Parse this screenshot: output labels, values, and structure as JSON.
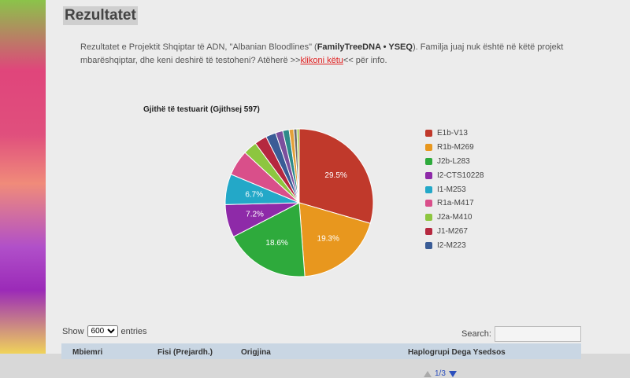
{
  "title": "Rezultatet",
  "intro": {
    "text1": "Rezultatet e Projektit Shqiptar të ADN, \"Albanian Bloodlines\" (",
    "bold": "FamilyTreeDNA • YSEQ",
    "text2": ").  Familja juaj nuk është në këtë projekt mbarëshqiptar, dhe keni deshirë të testoheni? Atëherë >>",
    "link": "klikoni këtu",
    "text3": "<< për info."
  },
  "chart_data": {
    "type": "pie",
    "title": "Gjithë të testuarit (Gjithsej 597)",
    "slices": [
      {
        "label": "E1b-V13",
        "value": 29.5,
        "color": "#c0392b"
      },
      {
        "label": "R1b-M269",
        "value": 19.3,
        "color": "#e8971e"
      },
      {
        "label": "J2b-L283",
        "value": 18.6,
        "color": "#2eaa3c"
      },
      {
        "label": "I2-CTS10228",
        "value": 7.2,
        "color": "#8e2aa8"
      },
      {
        "label": "I1-M253",
        "value": 6.7,
        "color": "#23a8c8"
      },
      {
        "label": "R1a-M417",
        "value": 5.6,
        "color": "#d94f8a"
      },
      {
        "label": "J2a-M410",
        "value": 3.0,
        "color": "#8dc63f"
      },
      {
        "label": "J1-M267",
        "value": 2.7,
        "color": "#b5283f"
      },
      {
        "label": "I2-M223",
        "value": 2.2,
        "color": "#3a5c96"
      },
      {
        "label": "",
        "value": 1.6,
        "color": "#7b4f9d"
      },
      {
        "label": "",
        "value": 1.4,
        "color": "#2d8a8a"
      },
      {
        "label": "",
        "value": 1.0,
        "color": "#e3a13a"
      },
      {
        "label": "",
        "value": 0.7,
        "color": "#6d6d6d"
      },
      {
        "label": "",
        "value": 0.5,
        "color": "#a1c93a"
      }
    ],
    "legend_items": [
      "E1b-V13",
      "R1b-M269",
      "J2b-L283",
      "I2-CTS10228",
      "I1-M253",
      "R1a-M417",
      "J2a-M410",
      "J1-M267",
      "I2-M223"
    ],
    "shown_labels": [
      "29.5%",
      "19.3%",
      "18.6%",
      "7.2%",
      "6.7%"
    ],
    "legend_page": "1/3"
  },
  "table_controls": {
    "show_label": "Show",
    "entries_value": "600",
    "entries_label": "entries",
    "search_label": "Search:"
  },
  "table_headers": [
    "Mbiemri",
    "Fisi (Prejardh.)",
    "Origjina",
    "Haplogrupi  Dega  Ysedsos"
  ]
}
